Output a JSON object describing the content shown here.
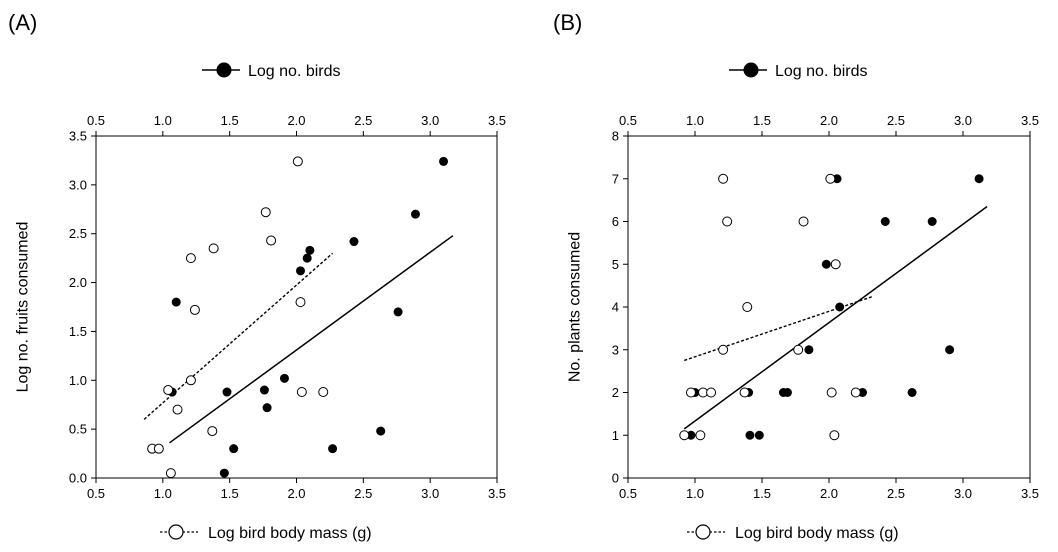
{
  "chart_data": [
    {
      "type": "scatter",
      "panel_label": "(A)",
      "ylabel": "Log no. fruits consumed",
      "ylim": [
        0.0,
        3.5
      ],
      "y_ticks": [
        "0.0",
        "0.5",
        "1.0",
        "1.5",
        "2.0",
        "2.5",
        "3.0",
        "3.5"
      ],
      "top_axis": {
        "label": "Log no. birds",
        "range": [
          0.5,
          3.5
        ],
        "ticks": [
          "0.5",
          "1.0",
          "1.5",
          "2.0",
          "2.5",
          "3.0",
          "3.5"
        ]
      },
      "bottom_axis": {
        "label": "Log bird body mass (g)",
        "range": [
          0.5,
          3.5
        ],
        "ticks": [
          "0.5",
          "1.0",
          "1.5",
          "2.0",
          "2.5",
          "3.0",
          "3.5"
        ]
      },
      "grid": false,
      "legend_placement": "top and bottom, beside axis labels",
      "series": [
        {
          "name": "Log no. birds",
          "marker": "filled-circle",
          "axis": "top",
          "points": [
            [
              1.07,
              0.88
            ],
            [
              1.1,
              1.8
            ],
            [
              1.46,
              0.05
            ],
            [
              1.48,
              0.88
            ],
            [
              1.53,
              0.3
            ],
            [
              1.76,
              0.9
            ],
            [
              1.78,
              0.72
            ],
            [
              1.91,
              1.02
            ],
            [
              2.03,
              2.12
            ],
            [
              2.08,
              2.25
            ],
            [
              2.1,
              2.33
            ],
            [
              2.27,
              0.3
            ],
            [
              2.43,
              2.42
            ],
            [
              2.63,
              0.48
            ],
            [
              2.76,
              1.7
            ],
            [
              2.89,
              2.7
            ],
            [
              3.1,
              3.24
            ]
          ],
          "fit": [
            [
              1.05,
              0.36
            ],
            [
              3.17,
              2.48
            ]
          ],
          "fit_style": "solid"
        },
        {
          "name": "Log bird body mass (g)",
          "marker": "open-circle",
          "axis": "bottom",
          "points": [
            [
              0.92,
              0.3
            ],
            [
              0.97,
              0.3
            ],
            [
              1.04,
              0.9
            ],
            [
              1.06,
              0.05
            ],
            [
              1.11,
              0.7
            ],
            [
              1.21,
              1.0
            ],
            [
              1.21,
              2.25
            ],
            [
              1.24,
              1.72
            ],
            [
              1.37,
              0.48
            ],
            [
              1.38,
              2.35
            ],
            [
              1.77,
              2.72
            ],
            [
              1.81,
              2.43
            ],
            [
              2.01,
              3.24
            ],
            [
              2.03,
              1.8
            ],
            [
              2.04,
              0.88
            ],
            [
              2.2,
              0.88
            ]
          ],
          "fit": [
            [
              0.86,
              0.6
            ],
            [
              2.27,
              2.3
            ]
          ],
          "fit_style": "dashed"
        }
      ]
    },
    {
      "type": "scatter",
      "panel_label": "(B)",
      "ylabel": "No. plants consumed",
      "ylim": [
        0,
        8
      ],
      "y_ticks": [
        "0",
        "1",
        "2",
        "3",
        "4",
        "5",
        "6",
        "7",
        "8"
      ],
      "top_axis": {
        "label": "Log no. birds",
        "range": [
          0.5,
          3.5
        ],
        "ticks": [
          "0.5",
          "1.0",
          "1.5",
          "2.0",
          "2.5",
          "3.0",
          "3.5"
        ]
      },
      "bottom_axis": {
        "label": "Log bird body mass (g)",
        "range": [
          0.5,
          3.5
        ],
        "ticks": [
          "0.5",
          "1.0",
          "1.5",
          "2.0",
          "2.5",
          "3.0",
          "3.5"
        ]
      },
      "grid": false,
      "legend_placement": "top and bottom, beside axis labels",
      "series": [
        {
          "name": "Log no. birds",
          "marker": "filled-circle",
          "axis": "top",
          "points": [
            [
              0.97,
              1
            ],
            [
              1.0,
              2
            ],
            [
              1.4,
              2
            ],
            [
              1.41,
              1
            ],
            [
              1.48,
              1
            ],
            [
              1.66,
              2
            ],
            [
              1.69,
              2
            ],
            [
              1.85,
              3
            ],
            [
              1.98,
              5
            ],
            [
              2.06,
              7
            ],
            [
              2.08,
              4
            ],
            [
              2.25,
              2
            ],
            [
              2.42,
              6
            ],
            [
              2.62,
              2
            ],
            [
              2.77,
              6
            ],
            [
              2.9,
              3
            ],
            [
              3.12,
              7
            ]
          ],
          "fit": [
            [
              0.92,
              1.15
            ],
            [
              3.18,
              6.35
            ]
          ],
          "fit_style": "solid"
        },
        {
          "name": "Log bird body mass (g)",
          "marker": "open-circle",
          "axis": "bottom",
          "points": [
            [
              0.92,
              1
            ],
            [
              0.97,
              2
            ],
            [
              1.04,
              1
            ],
            [
              1.06,
              2
            ],
            [
              1.12,
              2
            ],
            [
              1.21,
              3
            ],
            [
              1.21,
              7
            ],
            [
              1.24,
              6
            ],
            [
              1.37,
              2
            ],
            [
              1.39,
              4
            ],
            [
              1.77,
              3
            ],
            [
              1.81,
              6
            ],
            [
              2.02,
              2
            ],
            [
              2.01,
              7
            ],
            [
              2.04,
              1
            ],
            [
              2.05,
              5
            ],
            [
              2.2,
              2
            ]
          ],
          "fit": [
            [
              0.92,
              2.75
            ],
            [
              2.33,
              4.25
            ]
          ],
          "fit_style": "dashed"
        }
      ]
    }
  ]
}
